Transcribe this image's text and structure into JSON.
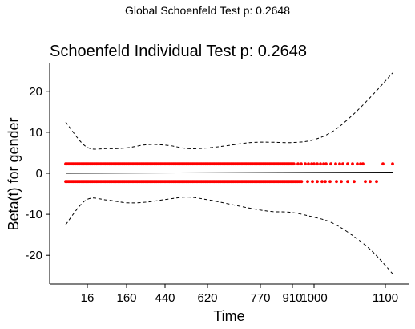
{
  "chart_data": {
    "type": "scatter",
    "suptitle": "Global Schoenfeld Test p: 0.2648",
    "title": "Schoenfeld Individual Test p: 0.2648",
    "xlabel": "Time",
    "ylabel": "Beta(t) for gender",
    "x_axis_scale": "transformed (rank-like), tick labels show time",
    "x_ticks": [
      "16",
      "160",
      "440",
      "620",
      "770",
      "910",
      "1000",
      "1100"
    ],
    "y_ticks": [
      20,
      10,
      0,
      -10,
      -20
    ],
    "ylim": [
      -27,
      27
    ],
    "grid": false,
    "legend": "none",
    "colors": {
      "points": "#ff0000",
      "fit": "#000000",
      "band": "#000000"
    },
    "residual_levels": [
      2.3,
      -2.0
    ],
    "points_upper_time_range": [
      "16",
      "1130"
    ],
    "points_lower_time_range": [
      "16",
      "1100"
    ],
    "fit_line": {
      "start": 0.0,
      "end": 0.3
    },
    "confidence_band": {
      "upper": [
        12.5,
        6.5,
        6.0,
        6.2,
        7.0,
        6.8,
        6.0,
        6.2,
        6.8,
        7.5,
        7.6,
        7.5,
        8.0,
        10.0,
        14.0,
        19.0,
        24.5
      ],
      "lower": [
        -12.5,
        -6.5,
        -6.5,
        -7.2,
        -7.0,
        -6.3,
        -5.8,
        -6.5,
        -7.5,
        -8.5,
        -9.3,
        -9.5,
        -10.5,
        -12.0,
        -15.0,
        -19.0,
        -24.5
      ]
    }
  }
}
